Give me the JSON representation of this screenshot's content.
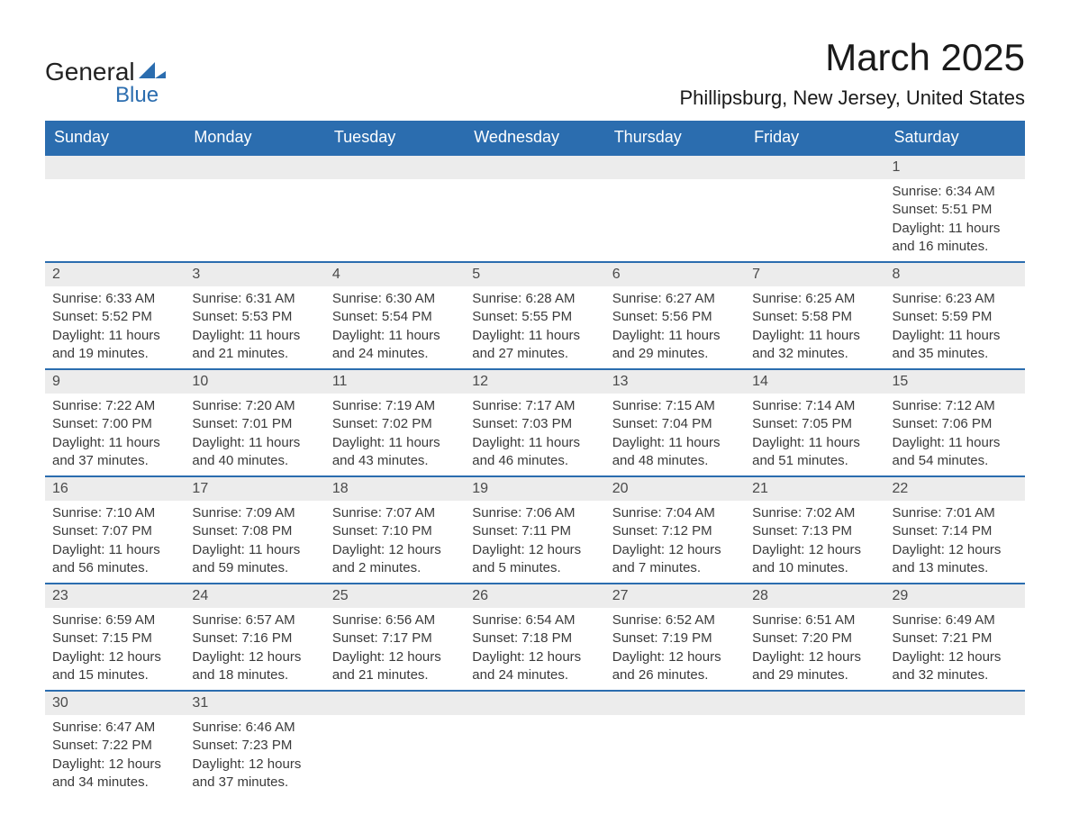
{
  "logo": {
    "text_general": "General",
    "text_blue": "Blue",
    "shape_color": "#2b6daf"
  },
  "title": "March 2025",
  "location": "Phillipsburg, New Jersey, United States",
  "colors": {
    "header_bg": "#2b6daf",
    "header_text": "#ffffff",
    "day_bar_bg": "#ececec",
    "body_text": "#3a3a3a",
    "row_border": "#2b6daf",
    "page_bg": "#ffffff"
  },
  "typography": {
    "title_fontsize": 42,
    "location_fontsize": 22,
    "header_fontsize": 18,
    "daynum_fontsize": 16,
    "body_fontsize": 15
  },
  "days_of_week": [
    "Sunday",
    "Monday",
    "Tuesday",
    "Wednesday",
    "Thursday",
    "Friday",
    "Saturday"
  ],
  "weeks": [
    [
      null,
      null,
      null,
      null,
      null,
      null,
      {
        "d": "1",
        "sr": "Sunrise: 6:34 AM",
        "ss": "Sunset: 5:51 PM",
        "dl1": "Daylight: 11 hours",
        "dl2": "and 16 minutes."
      }
    ],
    [
      {
        "d": "2",
        "sr": "Sunrise: 6:33 AM",
        "ss": "Sunset: 5:52 PM",
        "dl1": "Daylight: 11 hours",
        "dl2": "and 19 minutes."
      },
      {
        "d": "3",
        "sr": "Sunrise: 6:31 AM",
        "ss": "Sunset: 5:53 PM",
        "dl1": "Daylight: 11 hours",
        "dl2": "and 21 minutes."
      },
      {
        "d": "4",
        "sr": "Sunrise: 6:30 AM",
        "ss": "Sunset: 5:54 PM",
        "dl1": "Daylight: 11 hours",
        "dl2": "and 24 minutes."
      },
      {
        "d": "5",
        "sr": "Sunrise: 6:28 AM",
        "ss": "Sunset: 5:55 PM",
        "dl1": "Daylight: 11 hours",
        "dl2": "and 27 minutes."
      },
      {
        "d": "6",
        "sr": "Sunrise: 6:27 AM",
        "ss": "Sunset: 5:56 PM",
        "dl1": "Daylight: 11 hours",
        "dl2": "and 29 minutes."
      },
      {
        "d": "7",
        "sr": "Sunrise: 6:25 AM",
        "ss": "Sunset: 5:58 PM",
        "dl1": "Daylight: 11 hours",
        "dl2": "and 32 minutes."
      },
      {
        "d": "8",
        "sr": "Sunrise: 6:23 AM",
        "ss": "Sunset: 5:59 PM",
        "dl1": "Daylight: 11 hours",
        "dl2": "and 35 minutes."
      }
    ],
    [
      {
        "d": "9",
        "sr": "Sunrise: 7:22 AM",
        "ss": "Sunset: 7:00 PM",
        "dl1": "Daylight: 11 hours",
        "dl2": "and 37 minutes."
      },
      {
        "d": "10",
        "sr": "Sunrise: 7:20 AM",
        "ss": "Sunset: 7:01 PM",
        "dl1": "Daylight: 11 hours",
        "dl2": "and 40 minutes."
      },
      {
        "d": "11",
        "sr": "Sunrise: 7:19 AM",
        "ss": "Sunset: 7:02 PM",
        "dl1": "Daylight: 11 hours",
        "dl2": "and 43 minutes."
      },
      {
        "d": "12",
        "sr": "Sunrise: 7:17 AM",
        "ss": "Sunset: 7:03 PM",
        "dl1": "Daylight: 11 hours",
        "dl2": "and 46 minutes."
      },
      {
        "d": "13",
        "sr": "Sunrise: 7:15 AM",
        "ss": "Sunset: 7:04 PM",
        "dl1": "Daylight: 11 hours",
        "dl2": "and 48 minutes."
      },
      {
        "d": "14",
        "sr": "Sunrise: 7:14 AM",
        "ss": "Sunset: 7:05 PM",
        "dl1": "Daylight: 11 hours",
        "dl2": "and 51 minutes."
      },
      {
        "d": "15",
        "sr": "Sunrise: 7:12 AM",
        "ss": "Sunset: 7:06 PM",
        "dl1": "Daylight: 11 hours",
        "dl2": "and 54 minutes."
      }
    ],
    [
      {
        "d": "16",
        "sr": "Sunrise: 7:10 AM",
        "ss": "Sunset: 7:07 PM",
        "dl1": "Daylight: 11 hours",
        "dl2": "and 56 minutes."
      },
      {
        "d": "17",
        "sr": "Sunrise: 7:09 AM",
        "ss": "Sunset: 7:08 PM",
        "dl1": "Daylight: 11 hours",
        "dl2": "and 59 minutes."
      },
      {
        "d": "18",
        "sr": "Sunrise: 7:07 AM",
        "ss": "Sunset: 7:10 PM",
        "dl1": "Daylight: 12 hours",
        "dl2": "and 2 minutes."
      },
      {
        "d": "19",
        "sr": "Sunrise: 7:06 AM",
        "ss": "Sunset: 7:11 PM",
        "dl1": "Daylight: 12 hours",
        "dl2": "and 5 minutes."
      },
      {
        "d": "20",
        "sr": "Sunrise: 7:04 AM",
        "ss": "Sunset: 7:12 PM",
        "dl1": "Daylight: 12 hours",
        "dl2": "and 7 minutes."
      },
      {
        "d": "21",
        "sr": "Sunrise: 7:02 AM",
        "ss": "Sunset: 7:13 PM",
        "dl1": "Daylight: 12 hours",
        "dl2": "and 10 minutes."
      },
      {
        "d": "22",
        "sr": "Sunrise: 7:01 AM",
        "ss": "Sunset: 7:14 PM",
        "dl1": "Daylight: 12 hours",
        "dl2": "and 13 minutes."
      }
    ],
    [
      {
        "d": "23",
        "sr": "Sunrise: 6:59 AM",
        "ss": "Sunset: 7:15 PM",
        "dl1": "Daylight: 12 hours",
        "dl2": "and 15 minutes."
      },
      {
        "d": "24",
        "sr": "Sunrise: 6:57 AM",
        "ss": "Sunset: 7:16 PM",
        "dl1": "Daylight: 12 hours",
        "dl2": "and 18 minutes."
      },
      {
        "d": "25",
        "sr": "Sunrise: 6:56 AM",
        "ss": "Sunset: 7:17 PM",
        "dl1": "Daylight: 12 hours",
        "dl2": "and 21 minutes."
      },
      {
        "d": "26",
        "sr": "Sunrise: 6:54 AM",
        "ss": "Sunset: 7:18 PM",
        "dl1": "Daylight: 12 hours",
        "dl2": "and 24 minutes."
      },
      {
        "d": "27",
        "sr": "Sunrise: 6:52 AM",
        "ss": "Sunset: 7:19 PM",
        "dl1": "Daylight: 12 hours",
        "dl2": "and 26 minutes."
      },
      {
        "d": "28",
        "sr": "Sunrise: 6:51 AM",
        "ss": "Sunset: 7:20 PM",
        "dl1": "Daylight: 12 hours",
        "dl2": "and 29 minutes."
      },
      {
        "d": "29",
        "sr": "Sunrise: 6:49 AM",
        "ss": "Sunset: 7:21 PM",
        "dl1": "Daylight: 12 hours",
        "dl2": "and 32 minutes."
      }
    ],
    [
      {
        "d": "30",
        "sr": "Sunrise: 6:47 AM",
        "ss": "Sunset: 7:22 PM",
        "dl1": "Daylight: 12 hours",
        "dl2": "and 34 minutes."
      },
      {
        "d": "31",
        "sr": "Sunrise: 6:46 AM",
        "ss": "Sunset: 7:23 PM",
        "dl1": "Daylight: 12 hours",
        "dl2": "and 37 minutes."
      },
      null,
      null,
      null,
      null,
      null
    ]
  ]
}
